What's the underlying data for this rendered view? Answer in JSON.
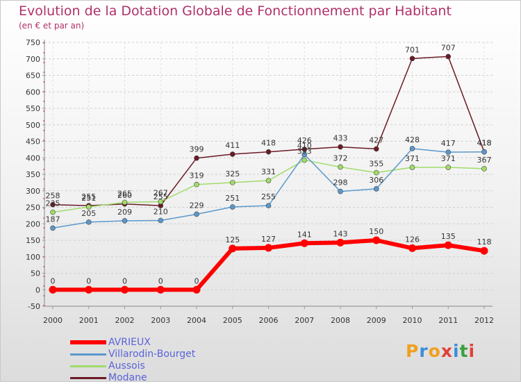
{
  "chart_data": {
    "type": "line",
    "title": "Evolution de la Dotation Globale de Fonctionnement par Habitant",
    "subtitle": "(en € et par an)",
    "x": [
      "2000",
      "2001",
      "2002",
      "2003",
      "2004",
      "2005",
      "2006",
      "2007",
      "2008",
      "2009",
      "2010",
      "2011",
      "2012"
    ],
    "ylim": [
      -50,
      750
    ],
    "yticks": [
      -50,
      0,
      50,
      100,
      150,
      200,
      250,
      300,
      350,
      400,
      450,
      500,
      550,
      600,
      650,
      700,
      750
    ],
    "xlabel": "",
    "ylabel": "",
    "grid": "horizontal-dashed",
    "legend_position": "bottom-left",
    "series": [
      {
        "name": "Modane",
        "color": "#6b1a24",
        "values": [
          258,
          255,
          260,
          255,
          399,
          411,
          418,
          426,
          433,
          427,
          701,
          707,
          418
        ]
      },
      {
        "name": "Aussois",
        "color": "#a0dc6a",
        "values": [
          235,
          251,
          265,
          267,
          319,
          325,
          331,
          393,
          372,
          355,
          371,
          371,
          367
        ]
      },
      {
        "name": "Villarodin-Bourget",
        "color": "#5a98cc",
        "values": [
          187,
          205,
          209,
          210,
          229,
          251,
          255,
          410,
          298,
          306,
          428,
          417,
          418
        ]
      },
      {
        "name": "AVRIEUX",
        "color": "#ff0000",
        "values": [
          0,
          0,
          0,
          0,
          0,
          125,
          127,
          141,
          143,
          150,
          126,
          135,
          118
        ]
      }
    ],
    "data_labels": {
      "Modane": [
        "258",
        "255",
        "260",
        "255",
        "399",
        "411",
        "418",
        "426",
        "433",
        "427",
        "701",
        "707",
        "418"
      ],
      "Aussois": [
        "235",
        "251",
        "265",
        "267",
        "319",
        "325",
        "331",
        "393",
        "372",
        "355",
        "371",
        "371",
        "367"
      ],
      "Villarodin-Bourget": [
        "187",
        "205",
        "209",
        "210",
        "229",
        "251",
        "255",
        "410",
        "298",
        "306",
        "428",
        "417",
        "418"
      ],
      "AVRIEUX": [
        "0",
        "0",
        "0",
        "0",
        "0",
        "125",
        "127",
        "141",
        "143",
        "150",
        "126",
        "135",
        "118"
      ]
    }
  },
  "legend": {
    "items": [
      {
        "label": "AVRIEUX",
        "color": "#ff0000"
      },
      {
        "label": "Villarodin-Bourget",
        "color": "#5a98cc"
      },
      {
        "label": "Aussois",
        "color": "#a0dc6a"
      },
      {
        "label": "Modane",
        "color": "#6b1a24"
      }
    ]
  },
  "logo": {
    "letters": [
      "P",
      "r",
      "o",
      "x",
      "i",
      "t",
      "i"
    ],
    "colors": [
      "#f0a020",
      "#3b8fd6",
      "#f0a020",
      "#e0403a",
      "#3b8fd6",
      "#3aa040",
      "#e0403a"
    ]
  }
}
